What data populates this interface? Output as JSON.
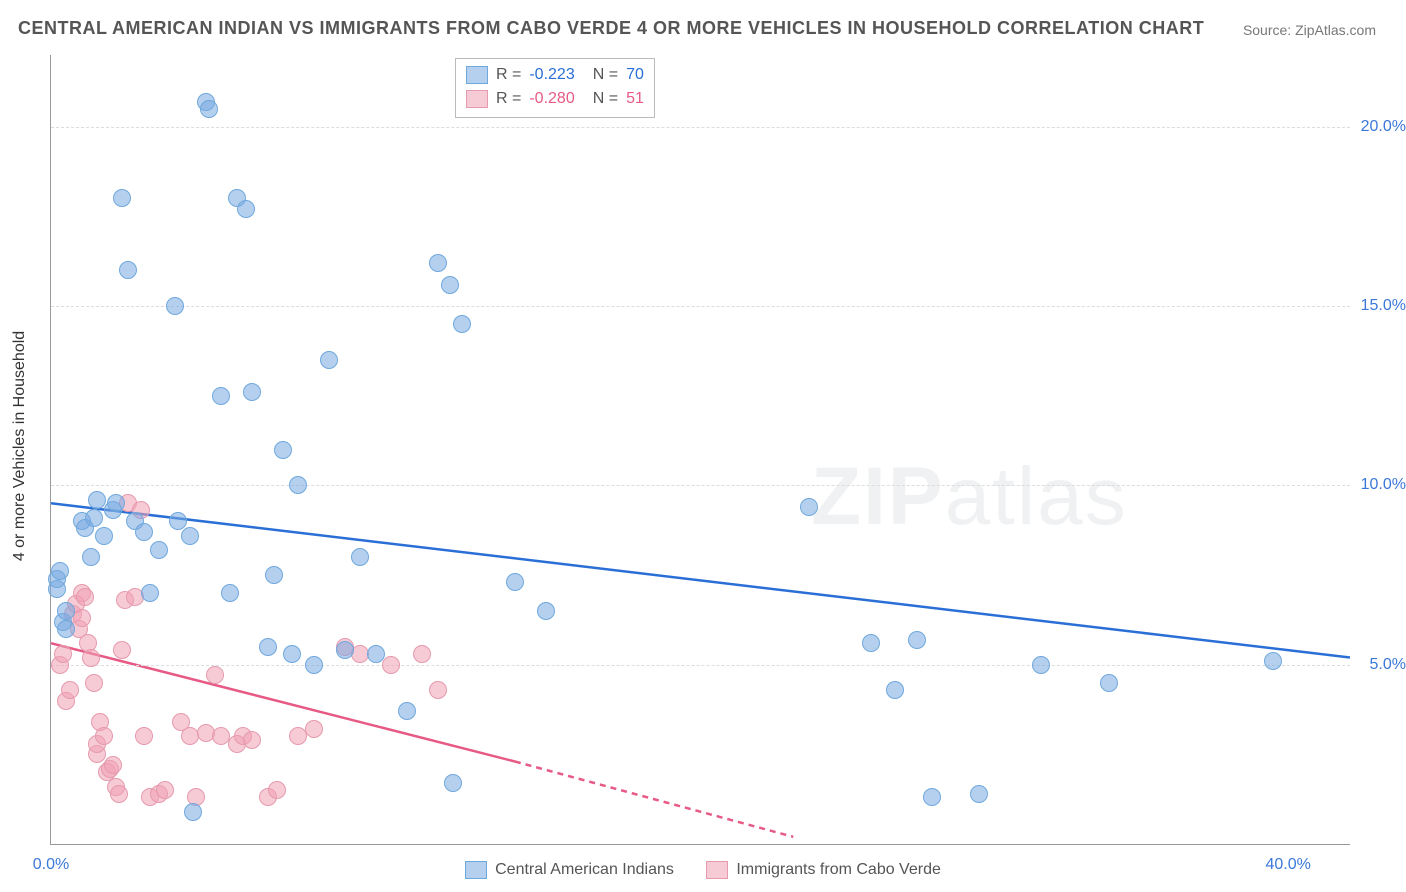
{
  "title": "CENTRAL AMERICAN INDIAN VS IMMIGRANTS FROM CABO VERDE 4 OR MORE VEHICLES IN HOUSEHOLD CORRELATION CHART",
  "source": "Source: ZipAtlas.com",
  "y_axis_title": "4 or more Vehicles in Household",
  "watermark": {
    "bold": "ZIP",
    "rest": "atlas"
  },
  "plot": {
    "x_min": 0.0,
    "x_max": 42.0,
    "y_min": 0.0,
    "y_max": 22.0,
    "grid_y": [
      5.0,
      10.0,
      15.0,
      20.0
    ],
    "y_ticks": [
      {
        "v": 5.0,
        "label": "5.0%"
      },
      {
        "v": 10.0,
        "label": "10.0%"
      },
      {
        "v": 15.0,
        "label": "15.0%"
      },
      {
        "v": 20.0,
        "label": "20.0%"
      }
    ],
    "x_ticks": [
      {
        "v": 0.0,
        "label": "0.0%"
      },
      {
        "v": 40.0,
        "label": "40.0%"
      }
    ],
    "axis_tick_color_blue": "#3b78d8",
    "axis_tick_color_default": "#3b78d8"
  },
  "series": {
    "blue": {
      "label": "Central American Indians",
      "R": "-0.223",
      "N": "70",
      "fill": "rgba(120,170,225,0.55)",
      "stroke": "#6fa8dc",
      "line_color": "#2a6fd6",
      "marker_radius": 9,
      "trend": {
        "x1": 0.0,
        "y1": 9.5,
        "x2": 42.0,
        "y2": 5.2,
        "dash_after_x": 42.0
      },
      "points": [
        [
          0.2,
          7.1
        ],
        [
          0.2,
          7.4
        ],
        [
          0.3,
          7.6
        ],
        [
          0.4,
          6.2
        ],
        [
          0.5,
          6.5
        ],
        [
          0.5,
          6.0
        ],
        [
          1.0,
          9.0
        ],
        [
          1.1,
          8.8
        ],
        [
          1.3,
          8.0
        ],
        [
          1.4,
          9.1
        ],
        [
          1.5,
          9.6
        ],
        [
          1.7,
          8.6
        ],
        [
          2.0,
          9.3
        ],
        [
          2.1,
          9.5
        ],
        [
          2.3,
          18.0
        ],
        [
          2.5,
          16.0
        ],
        [
          2.7,
          9.0
        ],
        [
          3.0,
          8.7
        ],
        [
          3.2,
          7.0
        ],
        [
          3.5,
          8.2
        ],
        [
          4.0,
          15.0
        ],
        [
          4.1,
          9.0
        ],
        [
          4.5,
          8.6
        ],
        [
          4.6,
          0.9
        ],
        [
          5.0,
          20.7
        ],
        [
          5.1,
          20.5
        ],
        [
          5.5,
          12.5
        ],
        [
          5.8,
          7.0
        ],
        [
          6.0,
          18.0
        ],
        [
          6.3,
          17.7
        ],
        [
          6.5,
          12.6
        ],
        [
          7.0,
          5.5
        ],
        [
          7.2,
          7.5
        ],
        [
          7.5,
          11.0
        ],
        [
          7.8,
          5.3
        ],
        [
          8.0,
          10.0
        ],
        [
          8.5,
          5.0
        ],
        [
          9.0,
          13.5
        ],
        [
          9.5,
          5.4
        ],
        [
          10.0,
          8.0
        ],
        [
          10.5,
          5.3
        ],
        [
          11.5,
          3.7
        ],
        [
          12.5,
          16.2
        ],
        [
          12.9,
          15.6
        ],
        [
          13.0,
          1.7
        ],
        [
          13.3,
          14.5
        ],
        [
          15.0,
          7.3
        ],
        [
          16.0,
          6.5
        ],
        [
          24.5,
          9.4
        ],
        [
          26.5,
          5.6
        ],
        [
          27.3,
          4.3
        ],
        [
          28.0,
          5.7
        ],
        [
          28.5,
          1.3
        ],
        [
          30.0,
          1.4
        ],
        [
          32.0,
          5.0
        ],
        [
          34.2,
          4.5
        ],
        [
          39.5,
          5.1
        ]
      ]
    },
    "pink": {
      "label": "Immigrants from Cabo Verde",
      "R": "-0.280",
      "N": "51",
      "fill": "rgba(240,160,180,0.55)",
      "stroke": "#e59aad",
      "line_color": "#e65a85",
      "marker_radius": 9,
      "trend": {
        "x1": 0.0,
        "y1": 5.6,
        "x2": 15.0,
        "y2": 2.3,
        "dash_to_x": 24.0,
        "dash_to_y": 0.2
      },
      "points": [
        [
          0.3,
          5.0
        ],
        [
          0.4,
          5.3
        ],
        [
          0.5,
          4.0
        ],
        [
          0.6,
          4.3
        ],
        [
          0.7,
          6.4
        ],
        [
          0.8,
          6.7
        ],
        [
          0.9,
          6.0
        ],
        [
          1.0,
          6.3
        ],
        [
          1.0,
          7.0
        ],
        [
          1.1,
          6.9
        ],
        [
          1.2,
          5.6
        ],
        [
          1.3,
          5.2
        ],
        [
          1.4,
          4.5
        ],
        [
          1.5,
          2.5
        ],
        [
          1.5,
          2.8
        ],
        [
          1.6,
          3.4
        ],
        [
          1.7,
          3.0
        ],
        [
          1.8,
          2.0
        ],
        [
          1.9,
          2.1
        ],
        [
          2.0,
          2.2
        ],
        [
          2.1,
          1.6
        ],
        [
          2.2,
          1.4
        ],
        [
          2.3,
          5.4
        ],
        [
          2.4,
          6.8
        ],
        [
          2.5,
          9.5
        ],
        [
          2.7,
          6.9
        ],
        [
          2.9,
          9.3
        ],
        [
          3.0,
          3.0
        ],
        [
          3.2,
          1.3
        ],
        [
          3.5,
          1.4
        ],
        [
          3.7,
          1.5
        ],
        [
          4.2,
          3.4
        ],
        [
          4.5,
          3.0
        ],
        [
          4.7,
          1.3
        ],
        [
          5.0,
          3.1
        ],
        [
          5.3,
          4.7
        ],
        [
          5.5,
          3.0
        ],
        [
          6.0,
          2.8
        ],
        [
          6.2,
          3.0
        ],
        [
          6.5,
          2.9
        ],
        [
          7.0,
          1.3
        ],
        [
          7.3,
          1.5
        ],
        [
          8.0,
          3.0
        ],
        [
          8.5,
          3.2
        ],
        [
          9.5,
          5.5
        ],
        [
          10.0,
          5.3
        ],
        [
          11.0,
          5.0
        ],
        [
          12.0,
          5.3
        ],
        [
          12.5,
          4.3
        ]
      ]
    }
  }
}
